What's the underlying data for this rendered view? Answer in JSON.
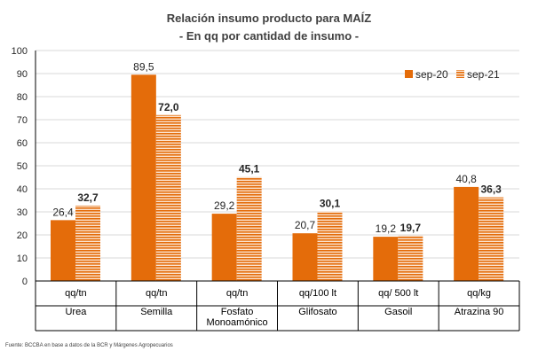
{
  "chart_data": {
    "type": "bar",
    "title": "Relación insumo producto para MAÍZ",
    "subtitle": "- En qq por cantidad de insumo -",
    "ylim": [
      0,
      100
    ],
    "yticks": [
      0,
      10,
      20,
      30,
      40,
      50,
      60,
      70,
      80,
      90,
      100
    ],
    "grid": true,
    "legend_position": "top-right",
    "categories": [
      {
        "unit": "qq/tn",
        "name": [
          "Urea"
        ]
      },
      {
        "unit": "qq/tn",
        "name": [
          "Semilla"
        ]
      },
      {
        "unit": "qq/tn",
        "name": [
          "Fosfato",
          "Monoamónico"
        ]
      },
      {
        "unit": "qq/100 lt",
        "name": [
          "Glifosato"
        ]
      },
      {
        "unit": "qq/ 500 lt",
        "name": [
          "Gasoil"
        ]
      },
      {
        "unit": "qq/kg",
        "name": [
          "Atrazina 90"
        ]
      }
    ],
    "series": [
      {
        "name": "sep-20",
        "color": "#e46c0a",
        "pattern": "solid",
        "values": [
          26.4,
          89.5,
          29.2,
          20.7,
          19.2,
          40.8
        ],
        "labels": [
          "26,4",
          "89,5",
          "29,2",
          "20,7",
          "19,2",
          "40,8"
        ]
      },
      {
        "name": "sep-21",
        "color": "#e46c0a",
        "pattern": "horizontal-stripes",
        "values": [
          32.7,
          72.0,
          45.1,
          30.1,
          19.7,
          36.3
        ],
        "labels": [
          "32,7",
          "72,0",
          "45,1",
          "30,1",
          "19,7",
          "36,3"
        ]
      }
    ]
  },
  "footnote": "Fuente: BCCBA en base a datos de la BCR y Márgenes Agropecuarios"
}
